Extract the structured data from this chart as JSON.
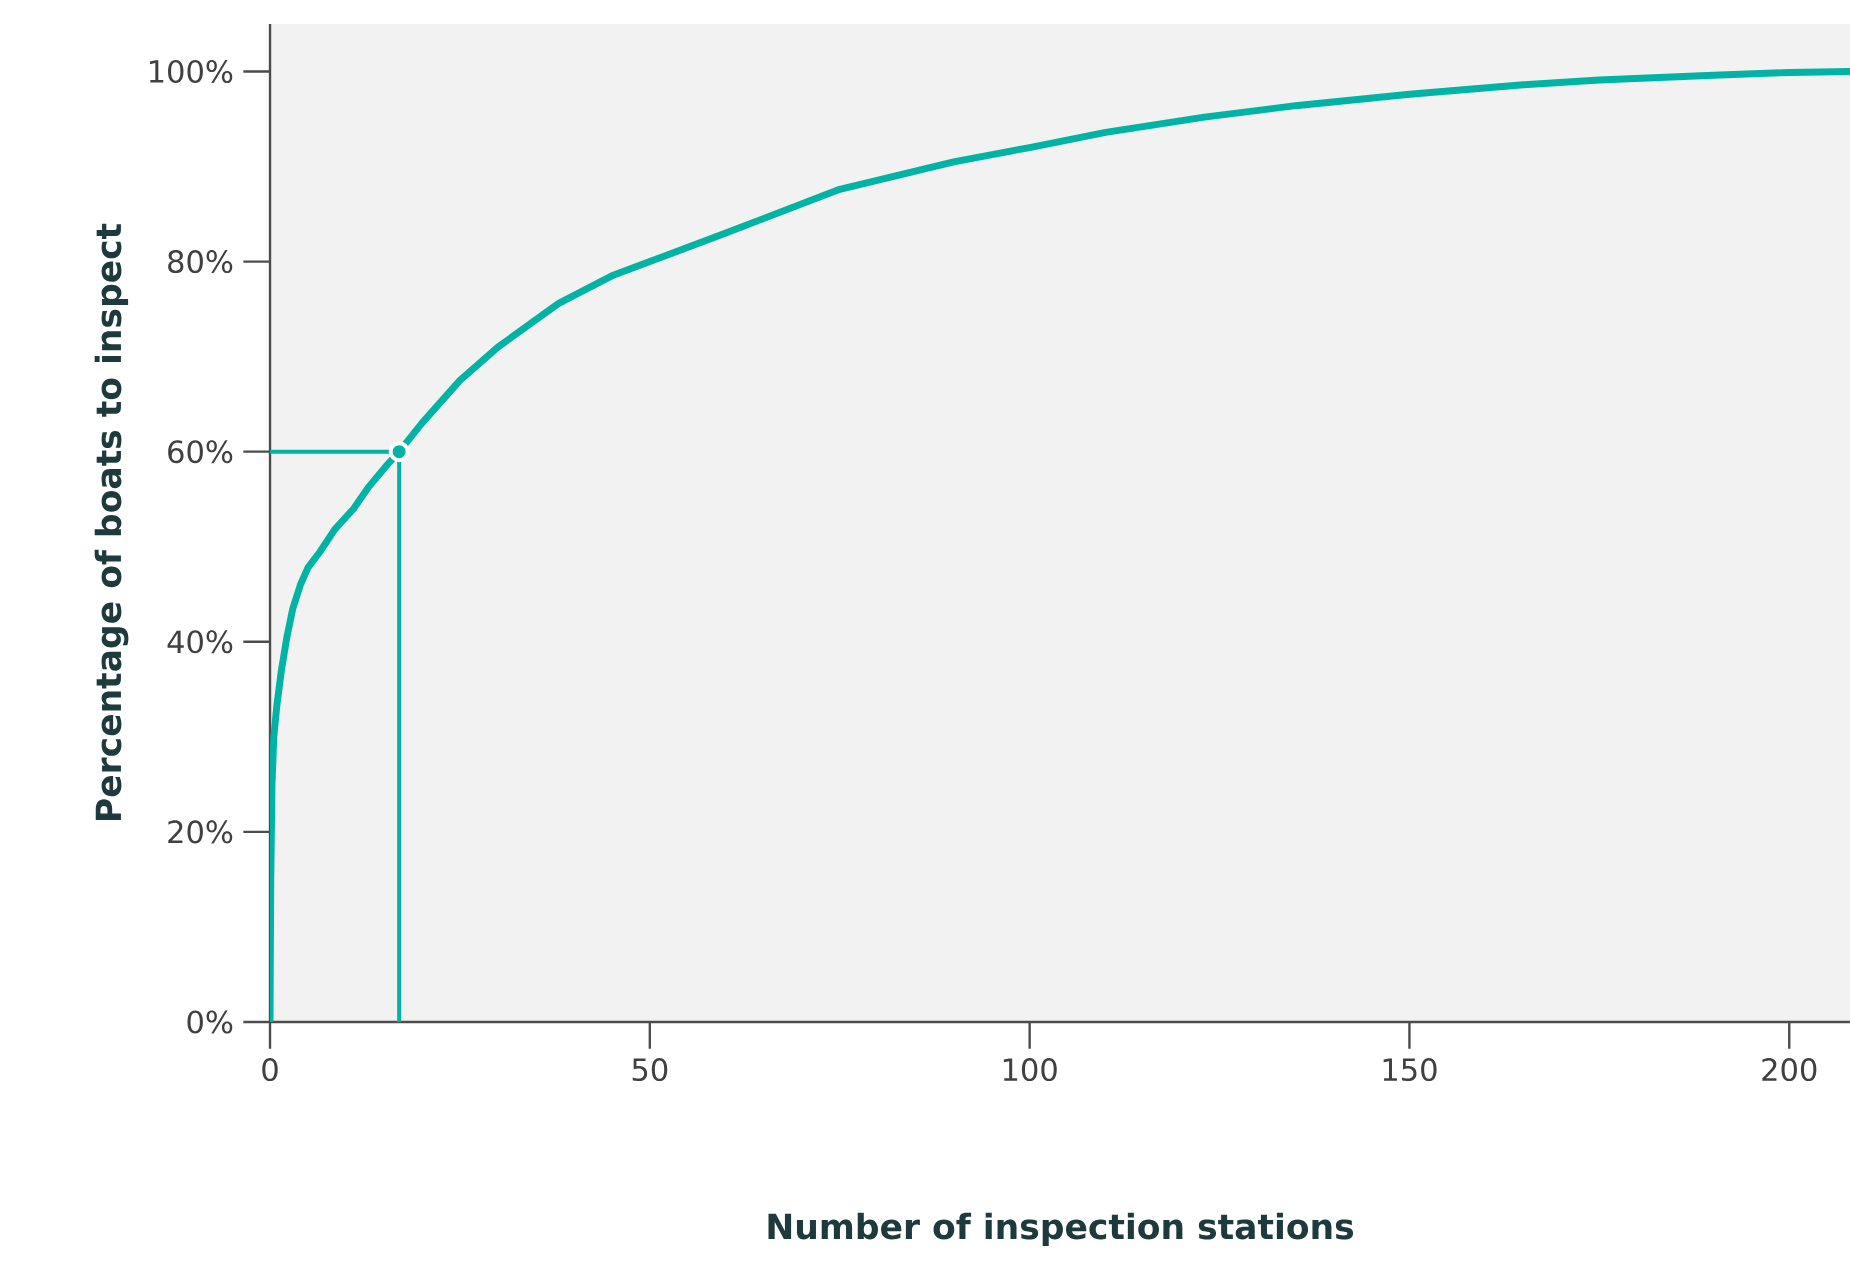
{
  "chart_data": {
    "type": "line",
    "xlabel": "Number of inspection stations",
    "ylabel": "Percentage of boats to inspect",
    "xlim": [
      0,
      208
    ],
    "ylim": [
      0,
      105
    ],
    "xticks": [
      0,
      50,
      100,
      150,
      200
    ],
    "yticks": [
      {
        "value": 0,
        "label": "0%"
      },
      {
        "value": 20,
        "label": "20%"
      },
      {
        "value": 40,
        "label": "40%"
      },
      {
        "value": 60,
        "label": "60%"
      },
      {
        "value": 80,
        "label": "80%"
      },
      {
        "value": 100,
        "label": "100%"
      }
    ],
    "grid": false,
    "marker": "none",
    "series": [
      {
        "color": "#00b3a4",
        "x": [
          0,
          0.1,
          0.26,
          0.5,
          0.9,
          1.5,
          2.2,
          3,
          4,
          5,
          6.6,
          8.5,
          11,
          13,
          15.4,
          17,
          20,
          25,
          30,
          38,
          45,
          50,
          60,
          75,
          90,
          100,
          110,
          123,
          135,
          150,
          165,
          175,
          190,
          200,
          208
        ],
        "values": [
          0,
          15,
          25,
          30,
          33.3,
          37,
          40.4,
          43.5,
          46,
          47.8,
          49.5,
          51.8,
          54,
          56.3,
          58.6,
          60,
          63,
          67.5,
          71,
          75.6,
          78.5,
          80,
          83,
          87.6,
          90.5,
          92,
          93.6,
          95.2,
          96.4,
          97.6,
          98.6,
          99.1,
          99.6,
          99.9,
          100
        ]
      },
      {
        "color": "#00b3a4",
        "x": [
          0,
          17,
          17
        ],
        "values": [
          60,
          60,
          0
        ]
      },
      {
        "type": "scatter",
        "marker": "circle",
        "color": "#00b3a4",
        "x": [
          17
        ],
        "values": [
          60
        ]
      }
    ]
  }
}
